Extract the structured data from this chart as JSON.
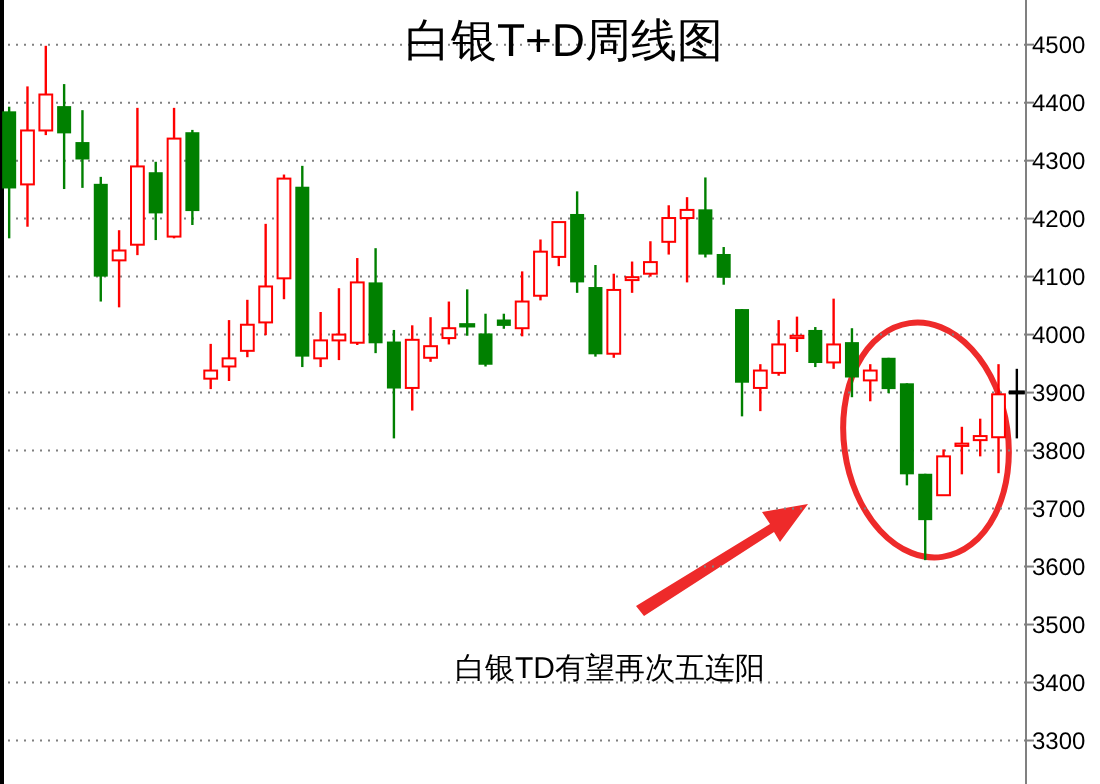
{
  "chart_data": {
    "type": "candlestick",
    "title": "白银T+D周线图",
    "annotations": [
      "白银TD有望再次五连阳"
    ],
    "categories": [
      null,
      null,
      null,
      null,
      null,
      null,
      null,
      null,
      null,
      null,
      null,
      null,
      null,
      null,
      null,
      null,
      null,
      null,
      null,
      null,
      null,
      null,
      null,
      null,
      null,
      null,
      null,
      null,
      null,
      null,
      null,
      null,
      null,
      null,
      null,
      null,
      null,
      null,
      null,
      null,
      null,
      null,
      null,
      null,
      null,
      null,
      null,
      null,
      null,
      null,
      null,
      null,
      null,
      null,
      null,
      null
    ],
    "ohlc": [
      [
        4385,
        4393,
        4166,
        4252
      ],
      [
        4259,
        4428,
        4186,
        4352
      ],
      [
        4352,
        4498,
        4344,
        4414
      ],
      [
        4394,
        4432,
        4251,
        4347
      ],
      [
        4332,
        4387,
        4253,
        4302
      ],
      [
        4260,
        4272,
        4057,
        4100
      ],
      [
        4128,
        4180,
        4047,
        4145
      ],
      [
        4155,
        4391,
        4137,
        4290
      ],
      [
        4280,
        4298,
        4163,
        4209
      ],
      [
        4169,
        4391,
        4166,
        4338
      ],
      [
        4349,
        4353,
        4189,
        4213
      ],
      [
        3924,
        3984,
        3906,
        3938
      ],
      [
        3945,
        4025,
        3920,
        3959
      ],
      [
        3972,
        4060,
        3961,
        4017
      ],
      [
        4021,
        4191,
        3999,
        4083
      ],
      [
        4097,
        4276,
        4061,
        4269
      ],
      [
        4255,
        4291,
        3944,
        3962
      ],
      [
        3959,
        4039,
        3944,
        3990
      ],
      [
        3990,
        4080,
        3956,
        4000
      ],
      [
        3986,
        4132,
        3982,
        4090
      ],
      [
        4090,
        4149,
        3968,
        3985
      ],
      [
        3988,
        4008,
        3821,
        3907
      ],
      [
        3908,
        4016,
        3869,
        3991
      ],
      [
        3960,
        4030,
        3953,
        3980
      ],
      [
        3994,
        4057,
        3983,
        4011
      ],
      [
        4018,
        4078,
        3998,
        4014
      ],
      [
        4002,
        4036,
        3945,
        3948
      ],
      [
        4026,
        4036,
        4010,
        4015
      ],
      [
        4011,
        4109,
        3997,
        4057
      ],
      [
        4067,
        4164,
        4059,
        4143
      ],
      [
        4134,
        4194,
        4118,
        4194
      ],
      [
        4208,
        4247,
        4072,
        4090
      ],
      [
        4082,
        4120,
        3962,
        3966
      ],
      [
        3967,
        4105,
        3960,
        4077
      ],
      [
        4094,
        4126,
        4072,
        4099
      ],
      [
        4105,
        4161,
        4100,
        4125
      ],
      [
        4160,
        4223,
        4138,
        4201
      ],
      [
        4201,
        4237,
        4090,
        4215
      ],
      [
        4216,
        4271,
        4133,
        4138
      ],
      [
        4139,
        4151,
        4086,
        4098
      ],
      [
        4044,
        4044,
        3859,
        3917
      ],
      [
        3908,
        3949,
        3868,
        3938
      ],
      [
        3934,
        4025,
        3929,
        3983
      ],
      [
        3994,
        4031,
        3970,
        3998
      ],
      [
        4008,
        4013,
        3944,
        3951
      ],
      [
        3952,
        4062,
        3941,
        3983
      ],
      [
        3987,
        4011,
        3892,
        3926
      ],
      [
        3921,
        3949,
        3885,
        3938
      ],
      [
        3960,
        3960,
        3899,
        3906
      ],
      [
        3916,
        3916,
        3740,
        3759
      ],
      [
        3760,
        3760,
        3611,
        3680
      ],
      [
        3723,
        3802,
        3723,
        3790
      ],
      [
        3808,
        3841,
        3759,
        3812
      ],
      [
        3818,
        3855,
        3790,
        3825
      ],
      [
        3823,
        3949,
        3761,
        3897
      ],
      [
        3902,
        3941,
        3821,
        3902
      ]
    ],
    "colors": [
      "#008000",
      "#ff0000",
      "#ff0000",
      "#008000",
      "#008000",
      "#008000",
      "#ff0000",
      "#ff0000",
      "#008000",
      "#ff0000",
      "#008000",
      "#ff0000",
      "#ff0000",
      "#ff0000",
      "#ff0000",
      "#ff0000",
      "#008000",
      "#ff0000",
      "#ff0000",
      "#ff0000",
      "#008000",
      "#008000",
      "#ff0000",
      "#ff0000",
      "#ff0000",
      "#008000",
      "#008000",
      "#008000",
      "#ff0000",
      "#ff0000",
      "#ff0000",
      "#008000",
      "#008000",
      "#ff0000",
      "#ff0000",
      "#ff0000",
      "#ff0000",
      "#ff0000",
      "#008000",
      "#008000",
      "#008000",
      "#ff0000",
      "#ff0000",
      "#ff0000",
      "#008000",
      "#ff0000",
      "#008000",
      "#ff0000",
      "#008000",
      "#008000",
      "#008000",
      "#ff0000",
      "#ff0000",
      "#ff0000",
      "#ff0000",
      "#000000"
    ],
    "ylim": [
      3225,
      4577
    ],
    "yticks": [
      3300,
      3400,
      3500,
      3600,
      3700,
      3800,
      3900,
      4000,
      4100,
      4200,
      4300,
      4400,
      4500
    ],
    "grid": "y"
  }
}
